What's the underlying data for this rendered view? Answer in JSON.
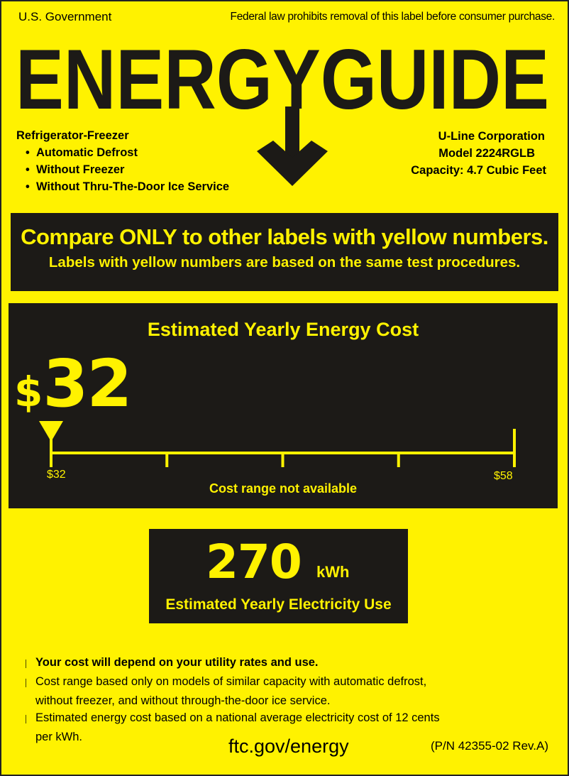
{
  "header": {
    "left": "U.S. Government",
    "right": "Federal law prohibits removal of this label before consumer purchase."
  },
  "logo": {
    "text": "ENERGYGUIDE",
    "icon": "down-arrow-icon"
  },
  "product": {
    "type": "Refrigerator-Freezer",
    "features": [
      "Automatic Defrost",
      "Without Freezer",
      "Without Thru-The-Door Ice Service"
    ],
    "manufacturer": "U-Line Corporation",
    "model": "Model 2224RGLB",
    "capacity": "Capacity: 4.7 Cubic Feet"
  },
  "banner": {
    "line1": "Compare ONLY to other labels with yellow numbers.",
    "line2": "Labels with yellow numbers are based on the same test procedures."
  },
  "cost": {
    "title": "Estimated Yearly Energy Cost",
    "currency": "$",
    "value": "32",
    "scale_min": "$32",
    "scale_max": "$58",
    "scale_min_value": 32,
    "scale_max_value": 58,
    "marker_value": 32,
    "range_note": "Cost range not available"
  },
  "electricity": {
    "value": "270",
    "unit": "kWh",
    "label": "Estimated Yearly Electricity Use"
  },
  "notes": [
    "Your cost will depend on your utility rates and use.",
    "Cost range based only on models of similar capacity with automatic defrost,",
    "without freezer, and without through-the-door ice service.",
    "Estimated energy cost based on a national average electricity cost of 12 cents",
    "per kWh."
  ],
  "footer": {
    "url": "ftc.gov/energy",
    "part_number": "(P/N 42355-02 Rev.A)"
  },
  "colors": {
    "label_yellow": "#fff200",
    "box_black": "#1c1a17"
  }
}
